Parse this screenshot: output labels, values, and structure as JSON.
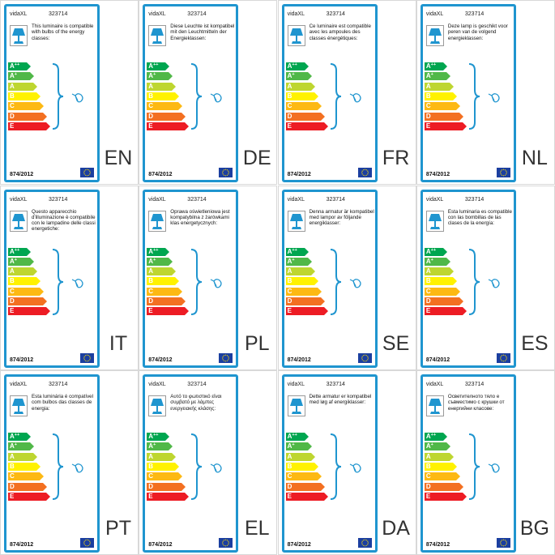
{
  "brand": "vidaXL",
  "product_code": "323714",
  "regulation": "874/2012",
  "energy_classes": [
    {
      "label": "A",
      "sup": "++",
      "color": "#00a650"
    },
    {
      "label": "A",
      "sup": "+",
      "color": "#50b848"
    },
    {
      "label": "A",
      "sup": "",
      "color": "#bed630"
    },
    {
      "label": "B",
      "sup": "",
      "color": "#fff200"
    },
    {
      "label": "C",
      "sup": "",
      "color": "#fdb913"
    },
    {
      "label": "D",
      "sup": "",
      "color": "#f37021"
    },
    {
      "label": "E",
      "sup": "",
      "color": "#ed1c24"
    }
  ],
  "accent_color": "#1f95cf",
  "labels": [
    {
      "lang": "EN",
      "text": "This luminaire is compatible with bulbs of the energy classes:"
    },
    {
      "lang": "DE",
      "text": "Diese Leuchte ist kompatibel mit den Leuchtmitteln der Energieklassen:"
    },
    {
      "lang": "FR",
      "text": "Ce luminaire est compatible avec les ampoules des classes énergétiques:"
    },
    {
      "lang": "NL",
      "text": "Deze lamp is geschikt voor peren van de volgend energieklassen:"
    },
    {
      "lang": "IT",
      "text": "Questo apparecchio d'illuminazione è compatibile con le lampadine delle classi energetiche:"
    },
    {
      "lang": "PL",
      "text": "Oprawa oświetleniowa jest kompatybilna z żarówkami klas energetycznych:"
    },
    {
      "lang": "SE",
      "text": "Denna armatur är kompatibel med lampor av följande energiklasser:"
    },
    {
      "lang": "ES",
      "text": "Esta luminaria es compatible con las bombillas de las clases de la energía:"
    },
    {
      "lang": "PT",
      "text": "Esta luminária é compatível com bulbos das classes de energia:"
    },
    {
      "lang": "EL",
      "text": "Αυτό το φωτιστικό είναι συμβατό με λάμπες ενεργειακής κλάσης:"
    },
    {
      "lang": "DA",
      "text": "Dette armatur er kompatibel med løg af energiklasser:"
    },
    {
      "lang": "BG",
      "text": "Осветителното тяло е съвместимо с крушки от енергийни класове:"
    }
  ]
}
